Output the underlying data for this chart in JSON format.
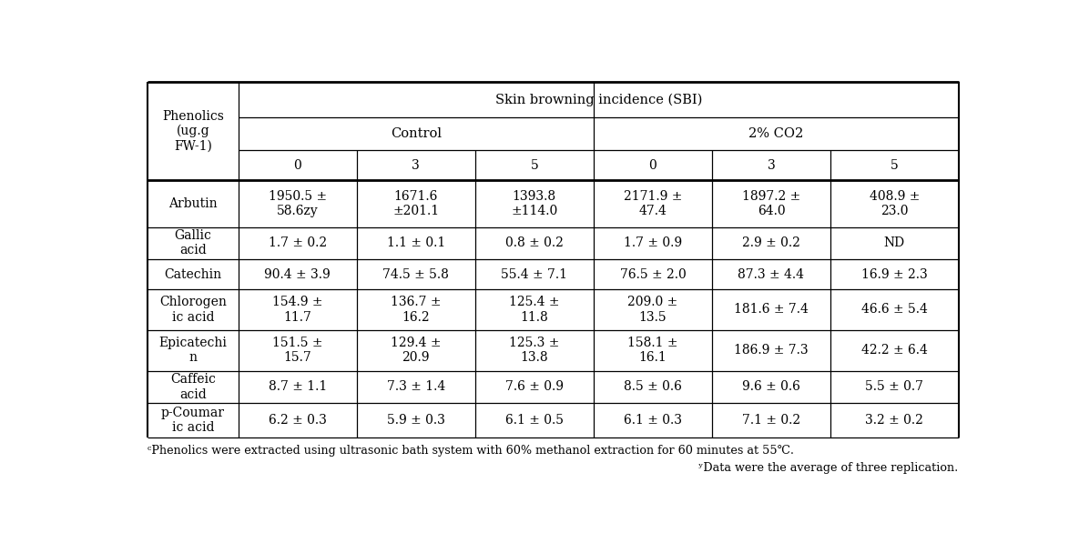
{
  "title": "Skin browning incidence (SBI)",
  "col_header_level1_control": "Control",
  "col_header_level1_co2": "2% CO2",
  "col_header_level2": [
    "0",
    "3",
    "5",
    "0",
    "3",
    "5"
  ],
  "phenolics_label": "Phenolics\n(ug.g\nFW-1)",
  "rows": [
    {
      "name": "Arbutin",
      "values": [
        "1950.5 ±\n58.6zy",
        "1671.6\n±201.1",
        "1393.8\n±114.0",
        "2171.9 ±\n47.4",
        "1897.2 ±\n64.0",
        "408.9 ±\n23.0"
      ]
    },
    {
      "name": "Gallic\nacid",
      "values": [
        "1.7 ± 0.2",
        "1.1 ± 0.1",
        "0.8 ± 0.2",
        "1.7 ± 0.9",
        "2.9 ± 0.2",
        "ND"
      ]
    },
    {
      "name": "Catechin",
      "values": [
        "90.4 ± 3.9",
        "74.5 ± 5.8",
        "55.4 ± 7.1",
        "76.5 ± 2.0",
        "87.3 ± 4.4",
        "16.9 ± 2.3"
      ]
    },
    {
      "name": "Chlorogen\nic acid",
      "values": [
        "154.9 ±\n11.7",
        "136.7 ±\n16.2",
        "125.4 ±\n11.8",
        "209.0 ±\n13.5",
        "181.6 ± 7.4",
        "46.6 ± 5.4"
      ]
    },
    {
      "name": "Epicatechi\nn",
      "values": [
        "151.5 ±\n15.7",
        "129.4 ±\n20.9",
        "125.3 ±\n13.8",
        "158.1 ±\n16.1",
        "186.9 ± 7.3",
        "42.2 ± 6.4"
      ]
    },
    {
      "name": "Caffeic\nacid",
      "values": [
        "8.7 ± 1.1",
        "7.3 ± 1.4",
        "7.6 ± 0.9",
        "8.5 ± 0.6",
        "9.6 ± 0.6",
        "5.5 ± 0.7"
      ]
    },
    {
      "name": "p-Coumar\nic acid",
      "values": [
        "6.2 ± 0.3",
        "5.9 ± 0.3",
        "6.1 ± 0.5",
        "6.1 ± 0.3",
        "7.1 ± 0.2",
        "3.2 ± 0.2"
      ]
    }
  ],
  "footnote1": "ᶜPhenolics were extracted using ultrasonic bath system with 60% methanol extraction for 60 minutes at 55℃.",
  "footnote2": "ʸData were the average of three replication.",
  "bg_color": "#ffffff",
  "text_color": "#000000",
  "font_size": 10.0,
  "header_font_size": 10.5,
  "footnote_font_size": 9.2
}
